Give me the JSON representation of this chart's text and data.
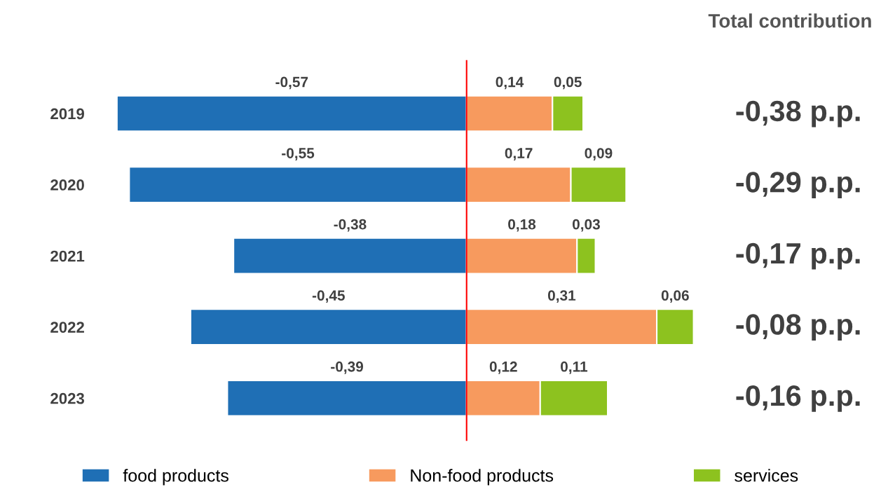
{
  "chart_data": {
    "type": "bar",
    "orientation": "horizontal",
    "stacked": true,
    "title": "Total contribution",
    "categories": [
      "2019",
      "2020",
      "2021",
      "2022",
      "2023"
    ],
    "series": [
      {
        "name": "food products",
        "color": "#1f6fb5",
        "values": [
          -0.57,
          -0.55,
          -0.38,
          -0.45,
          -0.39
        ],
        "value_labels": [
          "-0,57",
          "-0,55",
          "-0,38",
          "-0,45",
          "-0,39"
        ]
      },
      {
        "name": "Non-food products",
        "color": "#f79a5e",
        "values": [
          0.14,
          0.17,
          0.18,
          0.31,
          0.12
        ],
        "value_labels": [
          "0,14",
          "0,17",
          "0,18",
          "0,31",
          "0,12"
        ]
      },
      {
        "name": "services",
        "color": "#8dc21f",
        "values": [
          0.05,
          0.09,
          0.03,
          0.06,
          0.11
        ],
        "value_labels": [
          "0,05",
          "0,09",
          "0,03",
          "0,06",
          "0,11"
        ]
      }
    ],
    "annotations": [
      "-0,38 p.p.",
      "-0,29 p.p.",
      "-0,17 p.p.",
      "-0,08 p.p.",
      "-0,16 p.p."
    ],
    "tick_labels": "y",
    "ref_lines": [
      {
        "axis": "x",
        "value": 0,
        "color": "#ff0000"
      }
    ],
    "grid": false,
    "legend": "bottom"
  }
}
